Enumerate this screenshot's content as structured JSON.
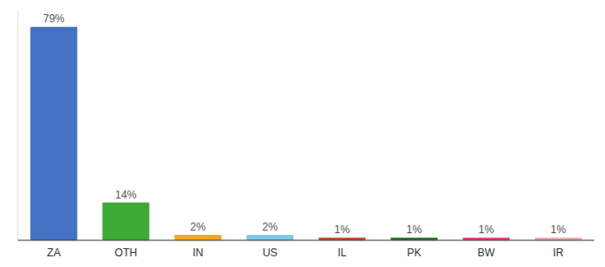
{
  "chart_data": {
    "type": "bar",
    "categories": [
      "ZA",
      "OTH",
      "IN",
      "US",
      "IL",
      "PK",
      "BW",
      "IR"
    ],
    "values": [
      79,
      14,
      2,
      2,
      1,
      1,
      1,
      1
    ],
    "value_labels": [
      "79%",
      "14%",
      "2%",
      "2%",
      "1%",
      "1%",
      "1%",
      "1%"
    ],
    "colors": [
      "#4472C4",
      "#3DAA35",
      "#F4A228",
      "#7BC8E8",
      "#C0532A",
      "#2D7A2D",
      "#E8457A",
      "#F4AAAA"
    ],
    "ylim": [
      0,
      85
    ],
    "data_labels": true,
    "tick_labels": "x"
  }
}
